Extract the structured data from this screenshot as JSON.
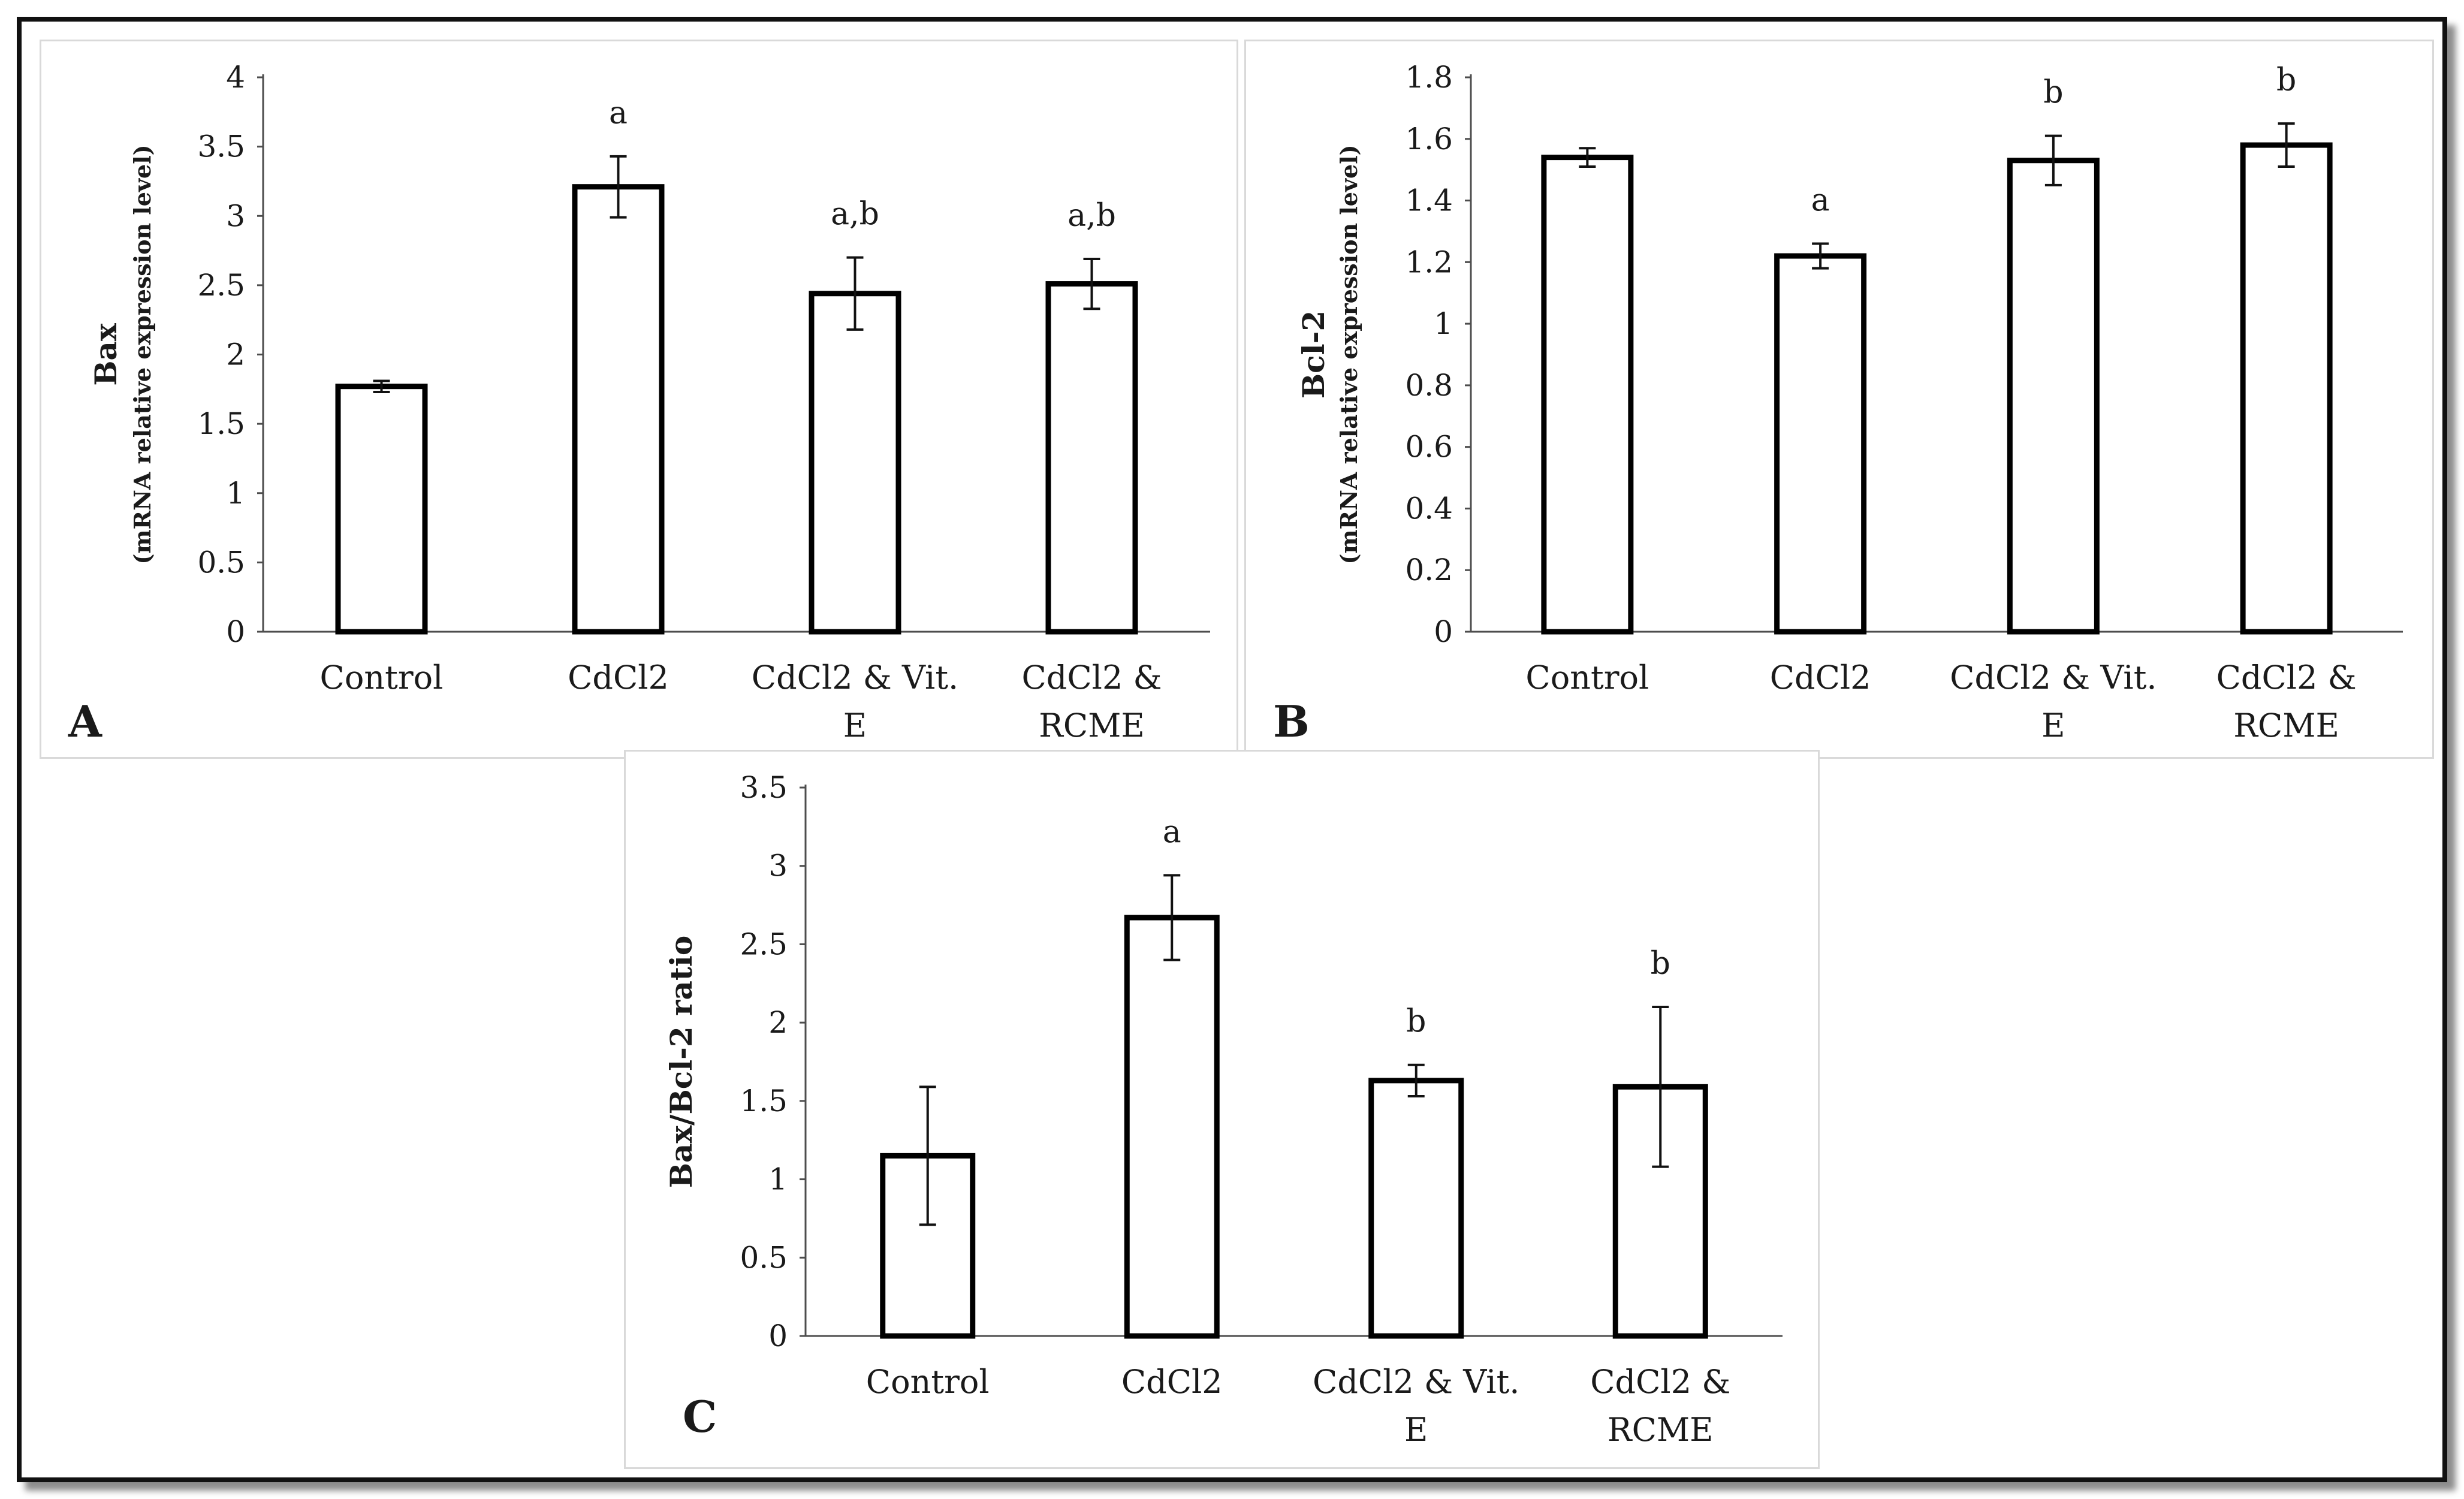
{
  "chart_data": [
    {
      "type": "bar",
      "panel_label": "A",
      "categories": [
        "Control",
        "CdCl2",
        "CdCl2 & Vit. E",
        "CdCl2 & RCME"
      ],
      "category_lines": [
        [
          "Control"
        ],
        [
          "CdCl2"
        ],
        [
          "CdCl2 & Vit.",
          "E"
        ],
        [
          "CdCl2 &",
          "RCME"
        ]
      ],
      "values": [
        1.77,
        3.21,
        2.44,
        2.51
      ],
      "errors": [
        0.04,
        0.22,
        0.26,
        0.18
      ],
      "significance": [
        "",
        "a",
        "a,b",
        "a,b"
      ],
      "ylabel": "Bax",
      "ylabel_sub": "(mRNA relative expression level)",
      "ylim": [
        0,
        4
      ],
      "yticks": [
        "0",
        "0.5",
        "1",
        "1.5",
        "2",
        "2.5",
        "3",
        "3.5",
        "4"
      ],
      "ytick_values": [
        0,
        0.5,
        1,
        1.5,
        2,
        2.5,
        3,
        3.5,
        4
      ],
      "grid": false
    },
    {
      "type": "bar",
      "panel_label": "B",
      "categories": [
        "Control",
        "CdCl2",
        "CdCl2 & Vit. E",
        "CdCl2 & RCME"
      ],
      "category_lines": [
        [
          "Control"
        ],
        [
          "CdCl2"
        ],
        [
          "CdCl2 & Vit.",
          "E"
        ],
        [
          "CdCl2 &",
          "RCME"
        ]
      ],
      "values": [
        1.54,
        1.22,
        1.53,
        1.58
      ],
      "errors": [
        0.03,
        0.04,
        0.08,
        0.07
      ],
      "significance": [
        "",
        "a",
        "b",
        "b"
      ],
      "ylabel": "Bcl-2",
      "ylabel_sub": "(mRNA relative expression level)",
      "ylim": [
        0,
        1.8
      ],
      "yticks": [
        "0",
        "0.2",
        "0.4",
        "0.6",
        "0.8",
        "1",
        "1.2",
        "1.4",
        "1.6",
        "1.8"
      ],
      "ytick_values": [
        0,
        0.2,
        0.4,
        0.6,
        0.8,
        1,
        1.2,
        1.4,
        1.6,
        1.8
      ],
      "grid": false
    },
    {
      "type": "bar",
      "panel_label": "C",
      "categories": [
        "Control",
        "CdCl2",
        "CdCl2 & Vit. E",
        "CdCl2 & RCME"
      ],
      "category_lines": [
        [
          "Control"
        ],
        [
          "CdCl2"
        ],
        [
          "CdCl2 & Vit.",
          "E"
        ],
        [
          "CdCl2 &",
          "RCME"
        ]
      ],
      "values": [
        1.15,
        2.67,
        1.63,
        1.59
      ],
      "errors": [
        0.44,
        0.27,
        0.1,
        0.51
      ],
      "significance": [
        "",
        "a",
        "b",
        "b"
      ],
      "ylabel": "Bax/Bcl-2 ratio",
      "ylabel_sub": "",
      "ylim": [
        0,
        3.5
      ],
      "yticks": [
        "0",
        "0.5",
        "1",
        "1.5",
        "2",
        "2.5",
        "3",
        "3.5"
      ],
      "ytick_values": [
        0,
        0.5,
        1,
        1.5,
        2,
        2.5,
        3,
        3.5
      ],
      "grid": false
    }
  ]
}
